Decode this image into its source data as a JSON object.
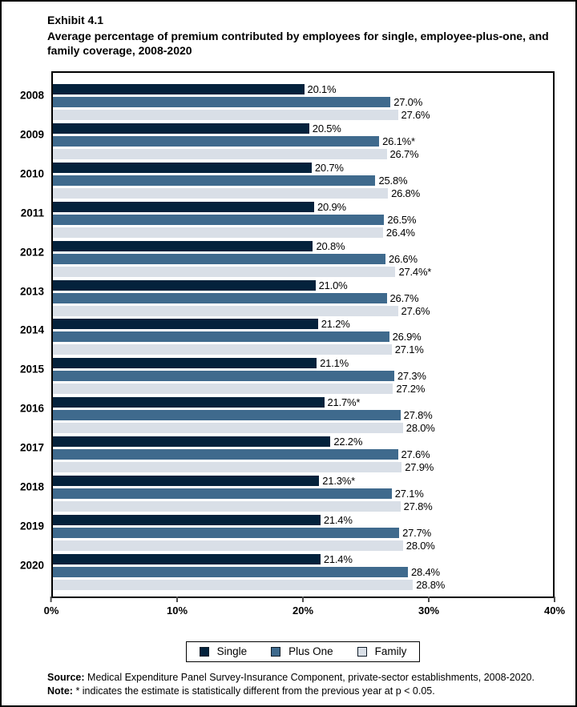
{
  "header": {
    "exhibit_label": "Exhibit 4.1",
    "title": "Average percentage of premium contributed by employees for single, employee-plus-one, and family coverage, 2008-2020"
  },
  "chart_data": {
    "type": "bar",
    "orientation": "horizontal",
    "title": "Average percentage of premium contributed by employees for single, employee-plus-one, and family coverage, 2008-2020",
    "categories": [
      "2008",
      "2009",
      "2010",
      "2011",
      "2012",
      "2013",
      "2014",
      "2015",
      "2016",
      "2017",
      "2018",
      "2019",
      "2020"
    ],
    "series": [
      {
        "name": "Single",
        "color": "#04223c",
        "values": [
          20.1,
          20.5,
          20.7,
          20.9,
          20.8,
          21.0,
          21.2,
          21.1,
          21.7,
          22.2,
          21.3,
          21.4,
          21.4
        ],
        "labels": [
          "20.1%",
          "20.5%",
          "20.7%",
          "20.9%",
          "20.8%",
          "21.0%",
          "21.2%",
          "21.1%",
          "21.7%*",
          "22.2%",
          "21.3%*",
          "21.4%",
          "21.4%"
        ]
      },
      {
        "name": "Plus One",
        "color": "#3f6a8d",
        "values": [
          27.0,
          26.1,
          25.8,
          26.5,
          26.6,
          26.7,
          26.9,
          27.3,
          27.8,
          27.6,
          27.1,
          27.7,
          28.4
        ],
        "labels": [
          "27.0%",
          "26.1%*",
          "25.8%",
          "26.5%",
          "26.6%",
          "26.7%",
          "26.9%",
          "27.3%",
          "27.8%",
          "27.6%",
          "27.1%",
          "27.7%",
          "28.4%"
        ]
      },
      {
        "name": "Family",
        "color": "#d9dfe7",
        "values": [
          27.6,
          26.7,
          26.8,
          26.4,
          27.4,
          27.6,
          27.1,
          27.2,
          28.0,
          27.9,
          27.8,
          28.0,
          28.8
        ],
        "labels": [
          "27.6%",
          "26.7%",
          "26.8%",
          "26.4%",
          "27.4%*",
          "27.6%",
          "27.1%",
          "27.2%",
          "28.0%",
          "27.9%",
          "27.8%",
          "28.0%",
          "28.8%"
        ]
      }
    ],
    "xlim": [
      0,
      40
    ],
    "x_ticks": [
      "0%",
      "10%",
      "20%",
      "30%",
      "40%"
    ],
    "grid": false,
    "legend_position": "bottom-center",
    "legend_entries": [
      "Single",
      "Plus One",
      "Family"
    ]
  },
  "footer": {
    "source_label": "Source:",
    "source_text": "Medical Expenditure Panel Survey-Insurance Component, private-sector establishments, 2008-2020.",
    "note_label": "Note:",
    "note_text": "* indicates the estimate is statistically different from the previous year at p < 0.05."
  }
}
